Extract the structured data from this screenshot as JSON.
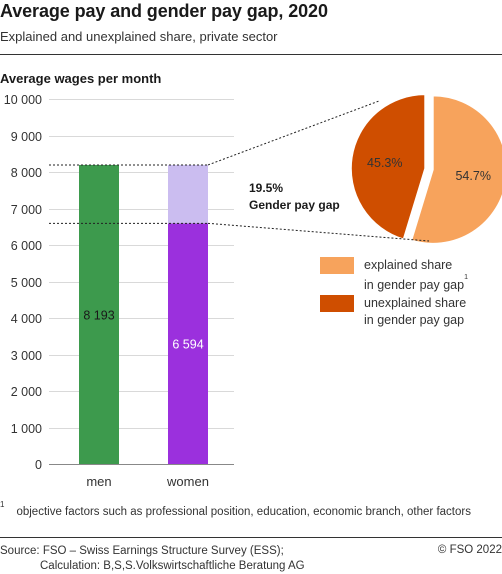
{
  "header": {
    "title": "Average pay and gender pay gap, 2020",
    "subtitle": "Explained and unexplained share, private sector"
  },
  "chart_data": {
    "type": "bar",
    "ylabel": "Average wages per month",
    "ylim": [
      0,
      10000
    ],
    "yticks": [
      0,
      1000,
      2000,
      3000,
      4000,
      5000,
      6000,
      7000,
      8000,
      9000,
      10000
    ],
    "ytick_labels": [
      "0",
      "1 000",
      "2 000",
      "3 000",
      "4 000",
      "5 000",
      "6 000",
      "7 000",
      "8 000",
      "9 000",
      "10 000"
    ],
    "categories": [
      "men",
      "women"
    ],
    "values": [
      8193,
      6594
    ],
    "value_labels": [
      "8 193",
      "6 594"
    ],
    "gap_top": 8193,
    "colors": {
      "men": "#3d9a4d",
      "women": "#9b30dd",
      "gap": "#cbbdf0"
    },
    "pie": {
      "type": "pie",
      "slices": [
        {
          "label": "explained share in gender pay gap",
          "value": 54.7,
          "value_label": "54.7%",
          "color": "#f7a35c"
        },
        {
          "label": "unexplained share in gender pay gap",
          "value": 45.3,
          "value_label": "45.3%",
          "color": "#cf4e00"
        }
      ]
    }
  },
  "gap_label": {
    "line1": "19.5%",
    "line2": "Gender pay gap"
  },
  "legend": [
    {
      "line1": "explained share",
      "line2": "in gender pay gap",
      "sup": "1",
      "color": "#f7a35c"
    },
    {
      "line1": "unexplained share",
      "line2": "in gender pay gap",
      "sup": "",
      "color": "#cf4e00"
    }
  ],
  "footnote": {
    "marker": "1",
    "text": "objective factors such as professional position, education, economic branch, other factors"
  },
  "source": {
    "line1": "Source: FSO – Swiss Earnings Structure Survey (ESS);",
    "line2": "Calculation: B,S,S.Volkswirtschaftliche Beratung AG",
    "copyright": "© FSO 2022"
  }
}
